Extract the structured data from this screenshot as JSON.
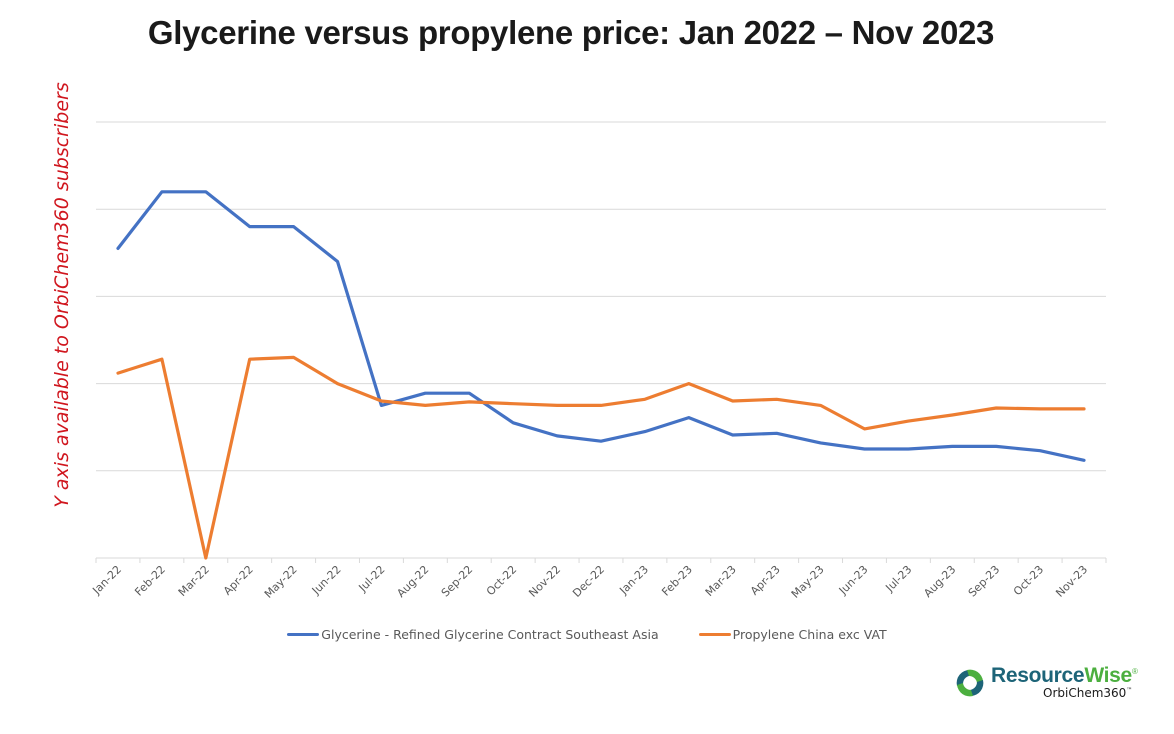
{
  "title": "Glycerine versus propylene price: Jan 2022 – Nov 2023",
  "y_axis_note": "Y axis available to OrbiChem360 subscribers",
  "legend": [
    {
      "label": "Glycerine - Refined Glycerine Contract Southeast Asia",
      "color": "#4472c4"
    },
    {
      "label": "Propylene China exc VAT",
      "color": "#ed7d31"
    }
  ],
  "logo": {
    "name_part1": "Resource",
    "name_part2": "Wise",
    "registered": "®",
    "sub": "OrbiChem360",
    "tm": "™"
  },
  "chart_data": {
    "type": "line",
    "title": "Glycerine versus propylene price: Jan 2022 – Nov 2023",
    "xlabel": "",
    "ylabel": "Y axis available to OrbiChem360 subscribers",
    "y_units": "relative (gridline units; actual y-axis values hidden)",
    "ylim": [
      0,
      5
    ],
    "grid": true,
    "legend_position": "bottom",
    "categories": [
      "Jan-22",
      "Feb-22",
      "Mar-22",
      "Apr-22",
      "May-22",
      "Jun-22",
      "Jul-22",
      "Aug-22",
      "Sep-22",
      "Oct-22",
      "Nov-22",
      "Dec-22",
      "Jan-23",
      "Feb-23",
      "Mar-23",
      "Apr-23",
      "May-23",
      "Jun-23",
      "Jul-23",
      "Aug-23",
      "Sep-23",
      "Oct-23",
      "Nov-23"
    ],
    "series": [
      {
        "name": "Glycerine - Refined Glycerine Contract Southeast Asia",
        "color": "#4472c4",
        "values": [
          3.55,
          4.2,
          4.2,
          3.8,
          3.8,
          3.4,
          1.75,
          1.89,
          1.89,
          1.55,
          1.4,
          1.34,
          1.45,
          1.61,
          1.41,
          1.43,
          1.32,
          1.25,
          1.25,
          1.28,
          1.28,
          1.23,
          1.12
        ]
      },
      {
        "name": "Propylene China exc VAT",
        "color": "#ed7d31",
        "values": [
          2.12,
          2.28,
          0.0,
          2.28,
          2.3,
          2.0,
          1.8,
          1.75,
          1.79,
          1.77,
          1.75,
          1.75,
          1.82,
          2.0,
          1.8,
          1.82,
          1.75,
          1.48,
          1.57,
          1.64,
          1.72,
          1.71,
          1.71
        ]
      }
    ]
  }
}
